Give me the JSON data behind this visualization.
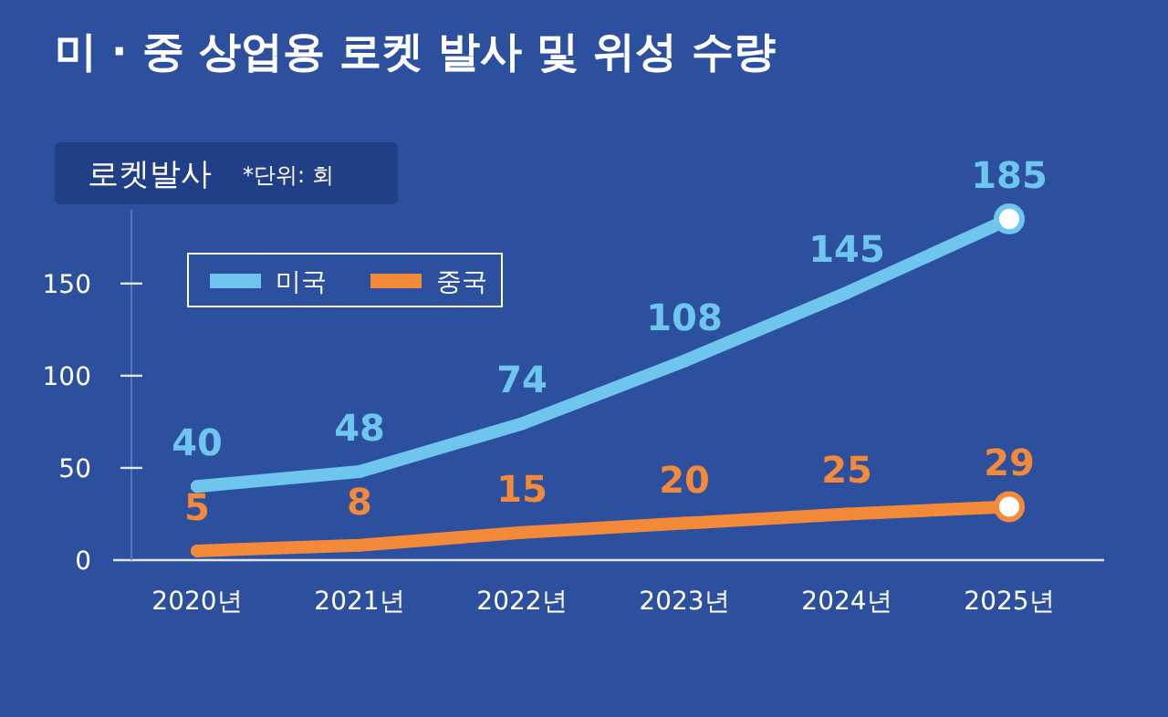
{
  "chart_data": {
    "type": "line",
    "title": "미 · 중 상업용 로켓 발사 및 위성 수량",
    "subtitle": "로켓발사",
    "annotations": [
      "*단위: 회"
    ],
    "categories": [
      "2020년",
      "2021년",
      "2022년",
      "2023년",
      "2024년",
      "2025년"
    ],
    "series": [
      {
        "name": "미국",
        "color": "#6ec6ee",
        "values": [
          40,
          48,
          74,
          108,
          145,
          185
        ]
      },
      {
        "name": "중국",
        "color": "#f28a3a",
        "values": [
          5,
          8,
          15,
          20,
          25,
          29
        ]
      }
    ],
    "ylim": [
      0,
      190
    ],
    "yticks": [
      0,
      50,
      100,
      150
    ],
    "data_labels": true,
    "legend": "top left",
    "grid": false,
    "marker": "circle"
  }
}
